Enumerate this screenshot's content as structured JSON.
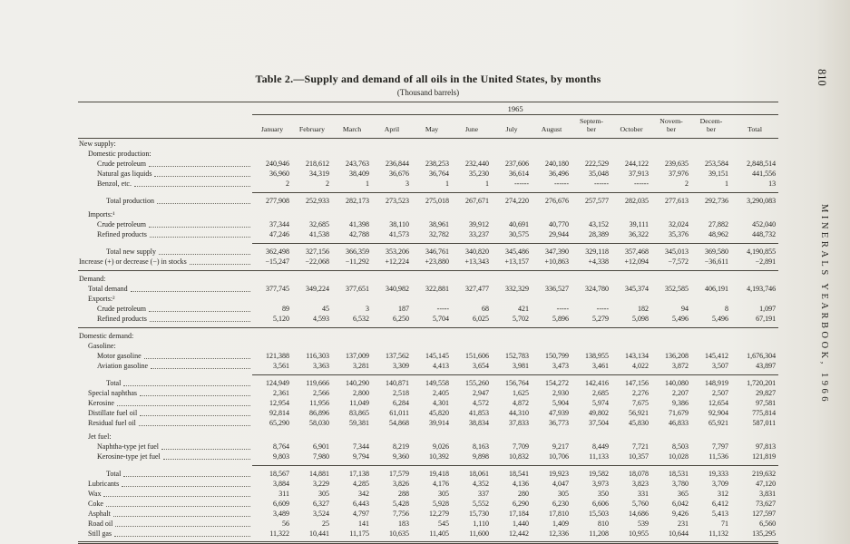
{
  "page": {
    "title": "Table 2.—Supply and demand of all oils in the United States, by months",
    "subtitle": "(Thousand barrels)",
    "page_number": "810",
    "side_text": "MINERALS YEARBOOK, 1966"
  },
  "table": {
    "year_header": "1965",
    "columns": [
      "January",
      "February",
      "March",
      "April",
      "May",
      "June",
      "July",
      "August",
      "Septem-\nber",
      "October",
      "Novem-\nber",
      "Decem-\nber",
      "Total"
    ],
    "rows": [
      {
        "label": "New supply:",
        "indent": 0,
        "type": "section"
      },
      {
        "label": "Domestic production:",
        "indent": 1,
        "type": "section"
      },
      {
        "label": "Crude petroleum",
        "indent": 2,
        "type": "data",
        "values": [
          "240,946",
          "218,612",
          "243,763",
          "236,844",
          "238,253",
          "232,440",
          "237,606",
          "240,180",
          "222,529",
          "244,122",
          "239,635",
          "253,584",
          "2,848,514"
        ]
      },
      {
        "label": "Natural gas liquids",
        "indent": 2,
        "type": "data",
        "values": [
          "36,960",
          "34,319",
          "38,409",
          "36,676",
          "36,764",
          "35,230",
          "36,614",
          "36,496",
          "35,048",
          "37,913",
          "37,976",
          "39,151",
          "441,556"
        ]
      },
      {
        "label": "Benzol, etc.",
        "indent": 2,
        "type": "data",
        "cls": "gap-b",
        "values": [
          "2",
          "2",
          "1",
          "3",
          "1",
          "1",
          "------",
          "------",
          "------",
          "------",
          "2",
          "1",
          "13"
        ]
      },
      {
        "label": "Total production",
        "indent": 3,
        "type": "total",
        "cls": "t-rule gap-b",
        "values": [
          "277,908",
          "252,933",
          "282,173",
          "273,523",
          "275,018",
          "267,671",
          "274,220",
          "276,676",
          "257,577",
          "282,035",
          "277,613",
          "292,736",
          "3,290,083"
        ]
      },
      {
        "label": "Imports:¹",
        "indent": 1,
        "type": "section"
      },
      {
        "label": "Crude petroleum",
        "indent": 2,
        "type": "data",
        "values": [
          "37,344",
          "32,685",
          "41,398",
          "38,110",
          "38,961",
          "39,912",
          "40,691",
          "40,770",
          "43,152",
          "39,111",
          "32,024",
          "27,882",
          "452,040"
        ]
      },
      {
        "label": "Refined products",
        "indent": 2,
        "type": "data",
        "cls": "gap-b",
        "values": [
          "47,246",
          "41,538",
          "42,788",
          "41,573",
          "32,782",
          "33,237",
          "30,575",
          "29,944",
          "28,389",
          "36,322",
          "35,376",
          "48,962",
          "448,732"
        ]
      },
      {
        "label": "Total new supply",
        "indent": 3,
        "type": "total",
        "cls": "t-rule",
        "values": [
          "362,498",
          "327,156",
          "366,359",
          "353,206",
          "346,761",
          "340,820",
          "345,486",
          "347,390",
          "329,118",
          "357,468",
          "345,013",
          "369,580",
          "4,190,855"
        ]
      },
      {
        "label": "Increase (+) or decrease (−) in stocks",
        "indent": 0,
        "type": "data",
        "cls": "gap-b",
        "values": [
          "−15,247",
          "−22,068",
          "−11,292",
          "+12,224",
          "+23,880",
          "+13,343",
          "+13,157",
          "+10,863",
          "+4,338",
          "+12,094",
          "−7,572",
          "−36,611",
          "−2,891"
        ]
      },
      {
        "label": "Demand:",
        "indent": 0,
        "type": "section",
        "cls": "f-rule"
      },
      {
        "label": "Total demand",
        "indent": 1,
        "type": "data",
        "values": [
          "377,745",
          "349,224",
          "377,651",
          "340,982",
          "322,881",
          "327,477",
          "332,329",
          "336,527",
          "324,780",
          "345,374",
          "352,585",
          "406,191",
          "4,193,746"
        ]
      },
      {
        "label": "Exports:²",
        "indent": 1,
        "type": "section"
      },
      {
        "label": "Crude petroleum",
        "indent": 2,
        "type": "data",
        "values": [
          "89",
          "45",
          "3",
          "187",
          "-----",
          "68",
          "421",
          "-----",
          "-----",
          "182",
          "94",
          "8",
          "1,097"
        ]
      },
      {
        "label": "Refined products",
        "indent": 2,
        "type": "data",
        "cls": "gap-b",
        "values": [
          "5,120",
          "4,593",
          "6,532",
          "6,250",
          "5,704",
          "6,025",
          "5,702",
          "5,896",
          "5,279",
          "5,098",
          "5,496",
          "5,496",
          "67,191"
        ]
      },
      {
        "label": "Domestic demand:",
        "indent": 0,
        "type": "section",
        "cls": "f-rule"
      },
      {
        "label": "Gasoline:",
        "indent": 1,
        "type": "section"
      },
      {
        "label": "Motor gasoline",
        "indent": 2,
        "type": "data",
        "values": [
          "121,388",
          "116,303",
          "137,009",
          "137,562",
          "145,145",
          "151,606",
          "152,783",
          "150,799",
          "138,955",
          "143,134",
          "136,208",
          "145,412",
          "1,676,304"
        ]
      },
      {
        "label": "Aviation gasoline",
        "indent": 2,
        "type": "data",
        "cls": "gap-b",
        "values": [
          "3,561",
          "3,363",
          "3,281",
          "3,309",
          "4,413",
          "3,654",
          "3,981",
          "3,473",
          "3,461",
          "4,022",
          "3,872",
          "3,507",
          "43,897"
        ]
      },
      {
        "label": "Total",
        "indent": 3,
        "type": "total",
        "cls": "t-rule",
        "values": [
          "124,949",
          "119,666",
          "140,290",
          "140,871",
          "149,558",
          "155,260",
          "156,764",
          "154,272",
          "142,416",
          "147,156",
          "140,080",
          "148,919",
          "1,720,201"
        ]
      },
      {
        "label": "Special naphthas",
        "indent": 1,
        "type": "data",
        "values": [
          "2,361",
          "2,566",
          "2,800",
          "2,518",
          "2,405",
          "2,947",
          "1,625",
          "2,930",
          "2,685",
          "2,276",
          "2,207",
          "2,507",
          "29,827"
        ]
      },
      {
        "label": "Kerosine",
        "indent": 1,
        "type": "data",
        "values": [
          "12,954",
          "11,956",
          "11,049",
          "6,284",
          "4,301",
          "4,572",
          "4,872",
          "5,904",
          "5,974",
          "7,675",
          "9,386",
          "12,654",
          "97,581"
        ]
      },
      {
        "label": "Distillate fuel oil",
        "indent": 1,
        "type": "data",
        "values": [
          "92,814",
          "86,896",
          "83,865",
          "61,011",
          "45,820",
          "41,853",
          "44,310",
          "47,939",
          "49,802",
          "56,921",
          "71,679",
          "92,904",
          "775,814"
        ]
      },
      {
        "label": "Residual fuel oil",
        "indent": 1,
        "type": "data",
        "cls": "gap-b",
        "values": [
          "65,290",
          "58,030",
          "59,381",
          "54,868",
          "39,914",
          "38,834",
          "37,833",
          "36,773",
          "37,504",
          "45,830",
          "46,833",
          "65,921",
          "587,011"
        ]
      },
      {
        "label": "Jet fuel:",
        "indent": 1,
        "type": "section"
      },
      {
        "label": "Naphtha-type jet fuel",
        "indent": 2,
        "type": "data",
        "values": [
          "8,764",
          "6,901",
          "7,344",
          "8,219",
          "9,026",
          "8,163",
          "7,709",
          "9,217",
          "8,449",
          "7,721",
          "8,503",
          "7,797",
          "97,813"
        ]
      },
      {
        "label": "Kerosine-type jet fuel",
        "indent": 2,
        "type": "data",
        "cls": "gap-b",
        "values": [
          "9,803",
          "7,980",
          "9,794",
          "9,360",
          "10,392",
          "9,898",
          "10,832",
          "10,706",
          "11,133",
          "10,357",
          "10,028",
          "11,536",
          "121,819"
        ]
      },
      {
        "label": "Total",
        "indent": 3,
        "type": "total",
        "cls": "t-rule",
        "values": [
          "18,567",
          "14,881",
          "17,138",
          "17,579",
          "19,418",
          "18,061",
          "18,541",
          "19,923",
          "19,582",
          "18,078",
          "18,531",
          "19,333",
          "219,632"
        ]
      },
      {
        "label": "Lubricants",
        "indent": 1,
        "type": "data",
        "values": [
          "3,884",
          "3,229",
          "4,285",
          "3,826",
          "4,176",
          "4,352",
          "4,136",
          "4,047",
          "3,973",
          "3,823",
          "3,780",
          "3,709",
          "47,120"
        ]
      },
      {
        "label": "Wax",
        "indent": 1,
        "type": "data",
        "values": [
          "311",
          "305",
          "342",
          "288",
          "305",
          "337",
          "280",
          "305",
          "350",
          "331",
          "365",
          "312",
          "3,831"
        ]
      },
      {
        "label": "Coke",
        "indent": 1,
        "type": "data",
        "values": [
          "6,609",
          "6,327",
          "6,443",
          "5,428",
          "5,928",
          "5,552",
          "6,290",
          "6,230",
          "6,606",
          "5,760",
          "6,042",
          "6,412",
          "73,627"
        ]
      },
      {
        "label": "Asphalt",
        "indent": 1,
        "type": "data",
        "values": [
          "3,489",
          "3,524",
          "4,797",
          "7,756",
          "12,279",
          "15,730",
          "17,184",
          "17,810",
          "15,503",
          "14,686",
          "9,426",
          "5,413",
          "127,597"
        ]
      },
      {
        "label": "Road oil",
        "indent": 1,
        "type": "data",
        "values": [
          "56",
          "25",
          "141",
          "183",
          "545",
          "1,110",
          "1,440",
          "1,409",
          "810",
          "539",
          "231",
          "71",
          "6,560"
        ]
      },
      {
        "label": "Still gas",
        "indent": 1,
        "type": "data",
        "values": [
          "11,322",
          "10,441",
          "11,175",
          "10,635",
          "11,405",
          "11,600",
          "12,442",
          "12,336",
          "11,208",
          "10,955",
          "10,644",
          "11,132",
          "135,295"
        ]
      }
    ]
  }
}
